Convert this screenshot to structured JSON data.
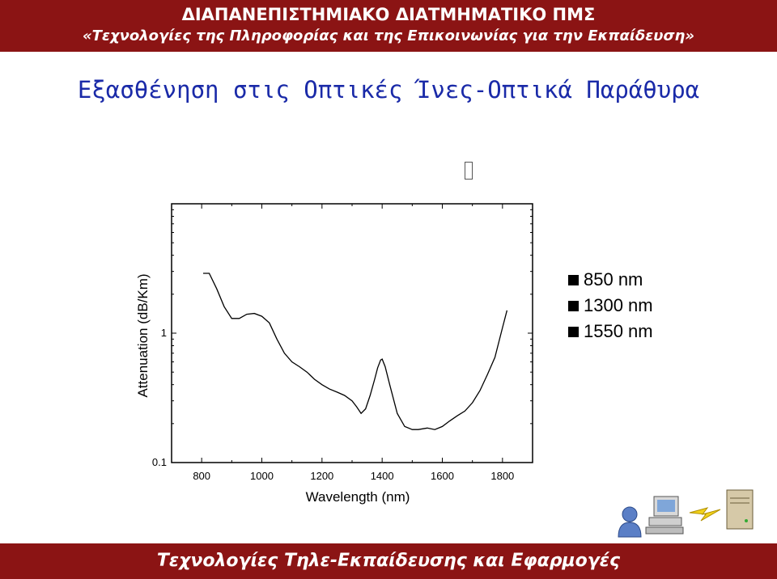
{
  "header": {
    "line1": "ΔΙΑΠΑΝΕΠΙΣΤΗΜΙΑΚΟ ΔΙΑΤΜΗΜΑΤΙΚΟ ΠΜΣ",
    "line2": "«Τεχνολογίες της Πληροφορίας και της Επικοινωνίας για την Εκπαίδευση»"
  },
  "slide_title": "Εξασθένηση στις Οπτικές Ίνες-Οπτικά Παράθυρα",
  "legend": [
    "850 nm",
    "1300 nm",
    "1550 nm"
  ],
  "footer": "Τεχνολογίες Τηλε-Εκπαίδευσης και Εφαρμογές",
  "icons": [
    "person-icon",
    "computer-icon",
    "lightning-icon",
    "server-icon"
  ],
  "colors": {
    "bar": "#8b1414",
    "title": "#1a2aa8"
  },
  "chart_data": {
    "type": "line",
    "xlabel": "Wavelength (nm)",
    "ylabel": "Attenuation (dB/Km)",
    "y_scale": "log",
    "xlim": [
      700,
      1900
    ],
    "ylim": [
      0.1,
      10
    ],
    "x_ticks": [
      800,
      1000,
      1200,
      1400,
      1600,
      1800
    ],
    "y_ticks": [
      "0.1",
      "1"
    ],
    "grid": false,
    "series": [
      {
        "x": [
          805,
          825,
          850,
          875,
          900,
          925,
          950,
          975,
          1000,
          1025,
          1050,
          1075,
          1100,
          1125,
          1150,
          1175,
          1200,
          1225,
          1250,
          1275,
          1300,
          1315,
          1330,
          1345,
          1360,
          1375,
          1385,
          1395,
          1400,
          1410,
          1425,
          1450,
          1475,
          1500,
          1520,
          1550,
          1575,
          1600,
          1625,
          1650,
          1675,
          1700,
          1725,
          1750,
          1775,
          1800,
          1815
        ],
        "y": [
          2.9,
          2.9,
          2.2,
          1.6,
          1.3,
          1.3,
          1.4,
          1.42,
          1.35,
          1.2,
          0.9,
          0.7,
          0.6,
          0.55,
          0.5,
          0.44,
          0.4,
          0.37,
          0.35,
          0.33,
          0.3,
          0.27,
          0.24,
          0.26,
          0.33,
          0.44,
          0.54,
          0.62,
          0.63,
          0.55,
          0.4,
          0.24,
          0.19,
          0.18,
          0.18,
          0.185,
          0.18,
          0.19,
          0.21,
          0.23,
          0.25,
          0.29,
          0.36,
          0.48,
          0.65,
          1.1,
          1.5
        ]
      }
    ]
  }
}
